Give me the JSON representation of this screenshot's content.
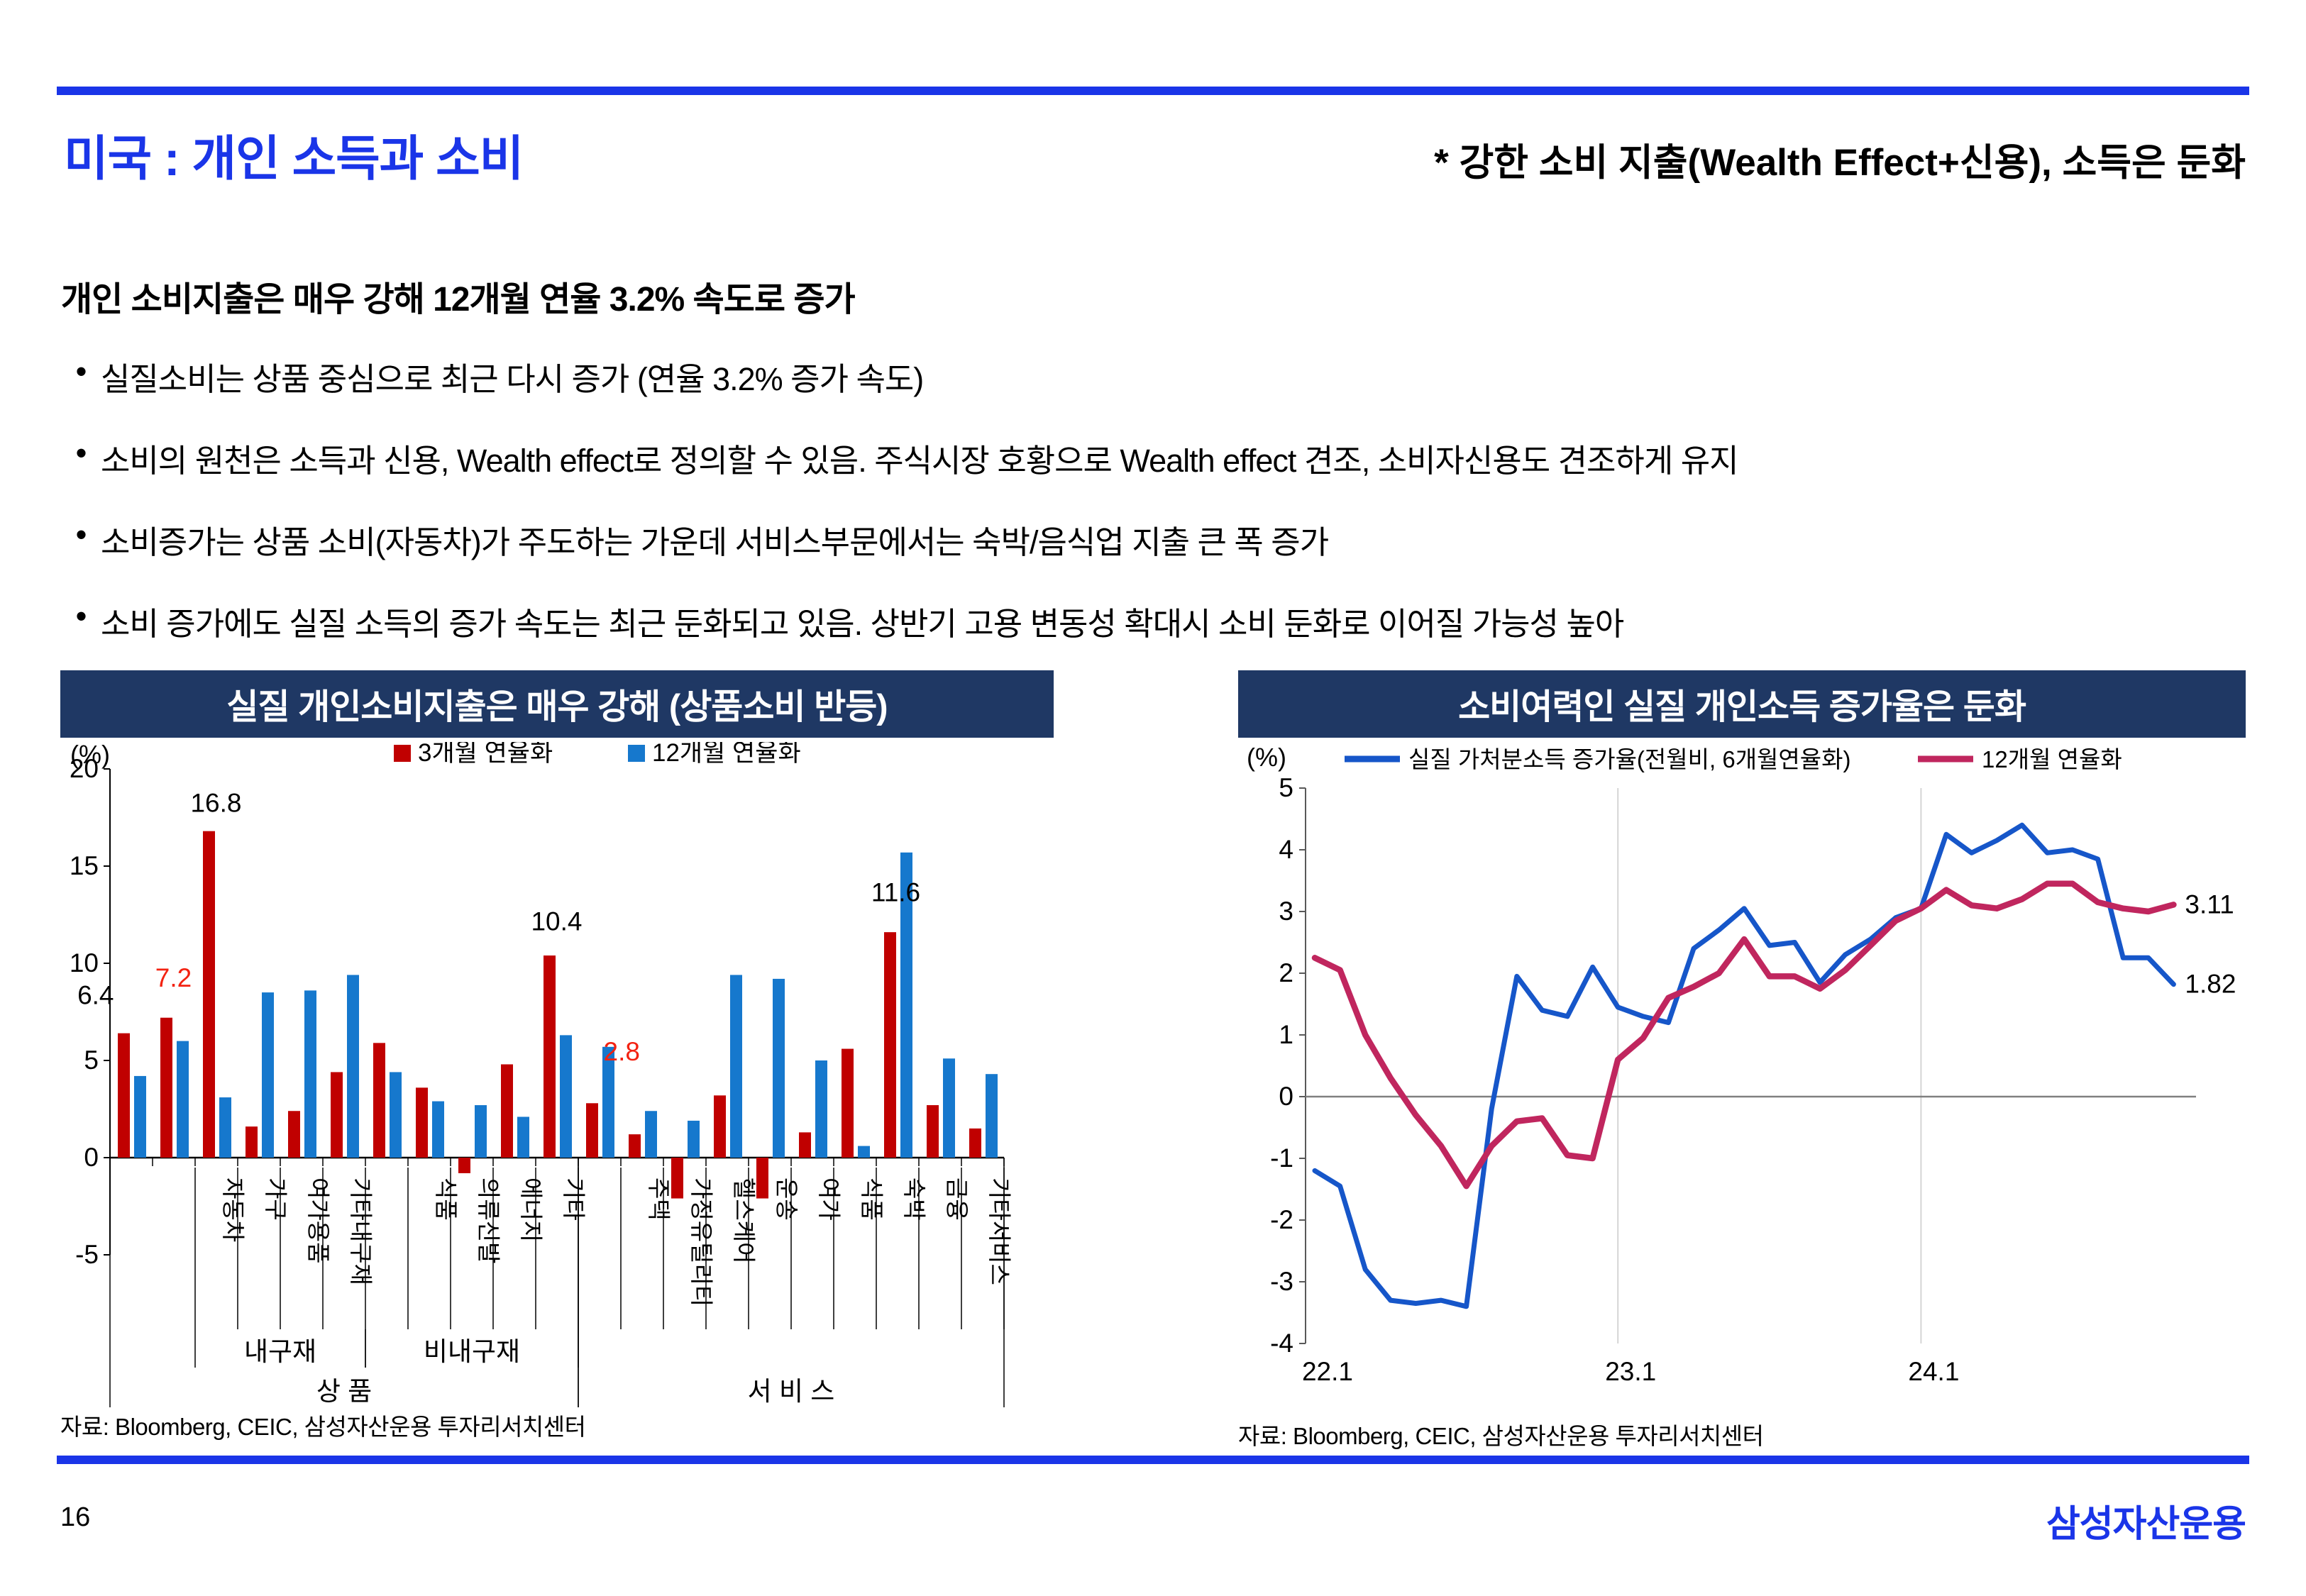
{
  "page": {
    "number": "16",
    "logo": "삼성자산운용",
    "accent_blue": "#1a35e8",
    "navy": "#1f3864"
  },
  "header": {
    "title": "미국 : 개인 소득과 소비",
    "subtitle": "* 강한 소비 지출(Wealth Effect+신용), 소득은 둔화"
  },
  "summary": {
    "marker": "•",
    "heading": "개인 소비지출은 매우 강해 12개월 연율 3.2% 속도로 증가",
    "bullets": [
      "실질소비는 상품 중심으로 최근 다시 증가 (연율 3.2% 증가 속도)",
      "소비의 원천은 소득과 신용, Wealth effect로 정의할 수 있음. 주식시장 호황으로 Wealth effect 견조, 소비자신용도 견조하게 유지",
      "소비증가는 상품 소비(자동차)가 주도하는 가운데 서비스부문에서는 숙박/음식업 지출 큰 폭 증가",
      "소비 증가에도 실질 소득의 증가 속도는 최근 둔화되고 있음. 상반기 고용 변동성 확대시 소비 둔화로 이어질 가능성 높아"
    ]
  },
  "chart_data": [
    {
      "type": "bar",
      "title": "실질 개인소비지출은 매우 강해 (상품소비 반등)",
      "unit_label": "(%)",
      "ylim": [
        -5,
        20
      ],
      "yticks": [
        20,
        15,
        10,
        5,
        0,
        -5
      ],
      "categories": [
        "",
        "",
        "자동차",
        "가구",
        "여가용품",
        "기타내구재",
        "",
        "식품",
        "의류신발",
        "에너지",
        "기타",
        "",
        "주택",
        "가정유틸리티",
        "헬스케어",
        "운송",
        "여가",
        "식품",
        "숙박",
        "금융",
        "기타서비스"
      ],
      "series": [
        {
          "name": "3개월 연율화",
          "color": "#c00000",
          "values": [
            6.4,
            7.2,
            16.8,
            1.6,
            2.4,
            4.4,
            5.9,
            3.6,
            -0.8,
            4.8,
            10.4,
            2.8,
            1.2,
            -2.1,
            3.2,
            -2.1,
            1.3,
            5.6,
            11.6,
            2.7,
            1.5
          ]
        },
        {
          "name": "12개월 연율화",
          "color": "#1678cd",
          "values": [
            4.2,
            6.0,
            3.1,
            8.5,
            8.6,
            9.4,
            4.4,
            2.9,
            2.7,
            2.1,
            6.3,
            5.7,
            2.4,
            1.9,
            9.4,
            9.2,
            5.0,
            0.6,
            15.7,
            5.1,
            4.3
          ]
        }
      ],
      "value_labels": [
        {
          "index": 0,
          "text": "6.4",
          "color": "#000000"
        },
        {
          "index": 1,
          "text": "7.2",
          "color": "#f32211"
        },
        {
          "index": 2,
          "text": "16.8",
          "color": "#000000"
        },
        {
          "index": 10,
          "text": "10.4",
          "color": "#000000"
        },
        {
          "index": 11,
          "text": "2.8",
          "color": "#f32211"
        },
        {
          "index": 18,
          "text": "11.6",
          "color": "#000000"
        }
      ],
      "group_rows": {
        "level1": [
          {
            "label": "내구재",
            "from": 2,
            "to": 5
          },
          {
            "label": "비내구재",
            "from": 6,
            "to": 10
          }
        ],
        "level2": [
          {
            "label": "상        품",
            "from": 0,
            "to": 10
          },
          {
            "label": "서  비  스",
            "from": 11,
            "to": 20
          }
        ]
      },
      "source": "자료: Bloomberg, CEIC, 삼성자산운용 투자리서치센터"
    },
    {
      "type": "line",
      "title": "소비여력인 실질 개인소득 증가율은 둔화",
      "unit_label": "(%)",
      "ylim": [
        -4,
        5
      ],
      "yticks": [
        5,
        4,
        3,
        2,
        1,
        0,
        -1,
        -2,
        -3,
        -4
      ],
      "xticks": [
        {
          "label": "22.1",
          "index": 0
        },
        {
          "label": "23.1",
          "index": 12
        },
        {
          "label": "24.1",
          "index": 24
        }
      ],
      "series": [
        {
          "name": "실질 가처분소득 증가율(전월비, 6개월연율화)",
          "color": "#1656c9",
          "end_label": "1.82",
          "values": [
            -1.2,
            -1.45,
            -2.8,
            -3.3,
            -3.35,
            -3.3,
            -3.4,
            -0.2,
            1.95,
            1.4,
            1.3,
            2.1,
            1.45,
            1.3,
            1.2,
            2.4,
            2.7,
            3.05,
            2.45,
            2.5,
            1.85,
            2.3,
            2.55,
            2.9,
            3.05,
            4.25,
            3.95,
            4.15,
            4.4,
            3.95,
            4.0,
            3.85,
            2.25,
            2.25,
            1.82
          ]
        },
        {
          "name": "12개월 연율화",
          "color": "#c0265e",
          "end_label": "3.11",
          "values": [
            2.25,
            2.05,
            1.0,
            0.3,
            -0.3,
            -0.8,
            -1.45,
            -0.8,
            -0.4,
            -0.35,
            -0.95,
            -1.0,
            0.6,
            0.95,
            1.6,
            1.78,
            2.0,
            2.55,
            1.95,
            1.95,
            1.75,
            2.05,
            2.45,
            2.85,
            3.05,
            3.35,
            3.1,
            3.05,
            3.2,
            3.45,
            3.45,
            3.15,
            3.05,
            3.0,
            3.11
          ]
        }
      ],
      "source": "자료: Bloomberg, CEIC, 삼성자산운용 투자리서치센터"
    }
  ]
}
